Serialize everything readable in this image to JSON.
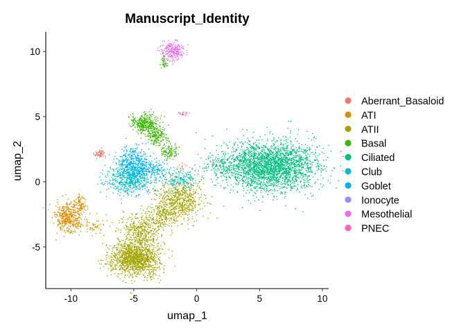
{
  "chart_data": {
    "type": "scatter",
    "title": "Manuscript_Identity",
    "xlabel": "umap_1",
    "ylabel": "umap_2",
    "xlim": [
      -12,
      10.5
    ],
    "ylim": [
      -8.2,
      11.5
    ],
    "xticks": [
      -10,
      -5,
      0,
      5,
      10
    ],
    "yticks": [
      -5,
      0,
      5,
      10
    ],
    "grid": false,
    "legend_position": "right",
    "series": [
      {
        "name": "Aberrant_Basaloid",
        "color": "#F8766D",
        "clusters": [
          {
            "x": -7.7,
            "y": 2.1,
            "sx": 0.22,
            "sy": 0.2,
            "n": 60
          },
          {
            "x": -1.2,
            "y": 1.1,
            "sx": 0.3,
            "sy": 0.15,
            "n": 12
          }
        ]
      },
      {
        "name": "ATI",
        "color": "#D89000",
        "clusters": [
          {
            "x": -10.2,
            "y": -2.8,
            "sx": 0.5,
            "sy": 0.55,
            "n": 420
          },
          {
            "x": -9.3,
            "y": -1.7,
            "sx": 0.3,
            "sy": 0.4,
            "n": 90
          },
          {
            "x": -8.3,
            "y": -3.4,
            "sx": 0.5,
            "sy": 0.3,
            "n": 60
          }
        ]
      },
      {
        "name": "ATII",
        "color": "#A3A500",
        "clusters": [
          {
            "x": -4.9,
            "y": -5.9,
            "sx": 0.95,
            "sy": 0.65,
            "n": 1300
          },
          {
            "x": -4.4,
            "y": -3.9,
            "sx": 0.8,
            "sy": 0.7,
            "n": 450
          },
          {
            "x": -1.4,
            "y": -1.4,
            "sx": 0.9,
            "sy": 0.75,
            "n": 650
          },
          {
            "x": -2.7,
            "y": -2.7,
            "sx": 0.6,
            "sy": 0.5,
            "n": 200
          }
        ]
      },
      {
        "name": "Basal",
        "color": "#39B600",
        "clusters": [
          {
            "x": -4.1,
            "y": 4.5,
            "sx": 0.55,
            "sy": 0.35,
            "n": 330
          },
          {
            "x": -3.2,
            "y": 3.5,
            "sx": 0.4,
            "sy": 0.35,
            "n": 180
          },
          {
            "x": -2.2,
            "y": 2.4,
            "sx": 0.35,
            "sy": 0.35,
            "n": 110
          },
          {
            "x": -2.6,
            "y": 9.2,
            "sx": 0.12,
            "sy": 0.3,
            "n": 40
          }
        ]
      },
      {
        "name": "Ciliated",
        "color": "#00BF7D",
        "clusters": [
          {
            "x": 5.8,
            "y": 1.2,
            "sx": 1.9,
            "sy": 0.95,
            "n": 2600
          },
          {
            "x": 2.0,
            "y": 1.3,
            "sx": 0.8,
            "sy": 0.4,
            "n": 130
          }
        ]
      },
      {
        "name": "Club",
        "color": "#00BFC4",
        "clusters": [
          {
            "x": -5.3,
            "y": 0.2,
            "sx": 0.85,
            "sy": 0.6,
            "n": 600
          },
          {
            "x": -1.3,
            "y": 0.2,
            "sx": 0.65,
            "sy": 0.35,
            "n": 160
          }
        ]
      },
      {
        "name": "Goblet",
        "color": "#00B0F6",
        "clusters": [
          {
            "x": -5.0,
            "y": 1.4,
            "sx": 0.7,
            "sy": 0.6,
            "n": 420
          },
          {
            "x": -3.3,
            "y": 0.9,
            "sx": 0.5,
            "sy": 0.4,
            "n": 120
          }
        ]
      },
      {
        "name": "Ionocyte",
        "color": "#9590FF",
        "clusters": [
          {
            "x": -1.2,
            "y": 5.3,
            "sx": 0.1,
            "sy": 0.05,
            "n": 5
          }
        ]
      },
      {
        "name": "Mesothelial",
        "color": "#E76BF3",
        "clusters": [
          {
            "x": -1.9,
            "y": 10.0,
            "sx": 0.45,
            "sy": 0.35,
            "n": 230
          }
        ]
      },
      {
        "name": "PNEC",
        "color": "#FF62BC",
        "clusters": [
          {
            "x": -1.0,
            "y": 5.2,
            "sx": 0.2,
            "sy": 0.06,
            "n": 14
          },
          {
            "x": 1.3,
            "y": 1.5,
            "sx": 0.1,
            "sy": 0.08,
            "n": 4
          }
        ]
      }
    ]
  }
}
